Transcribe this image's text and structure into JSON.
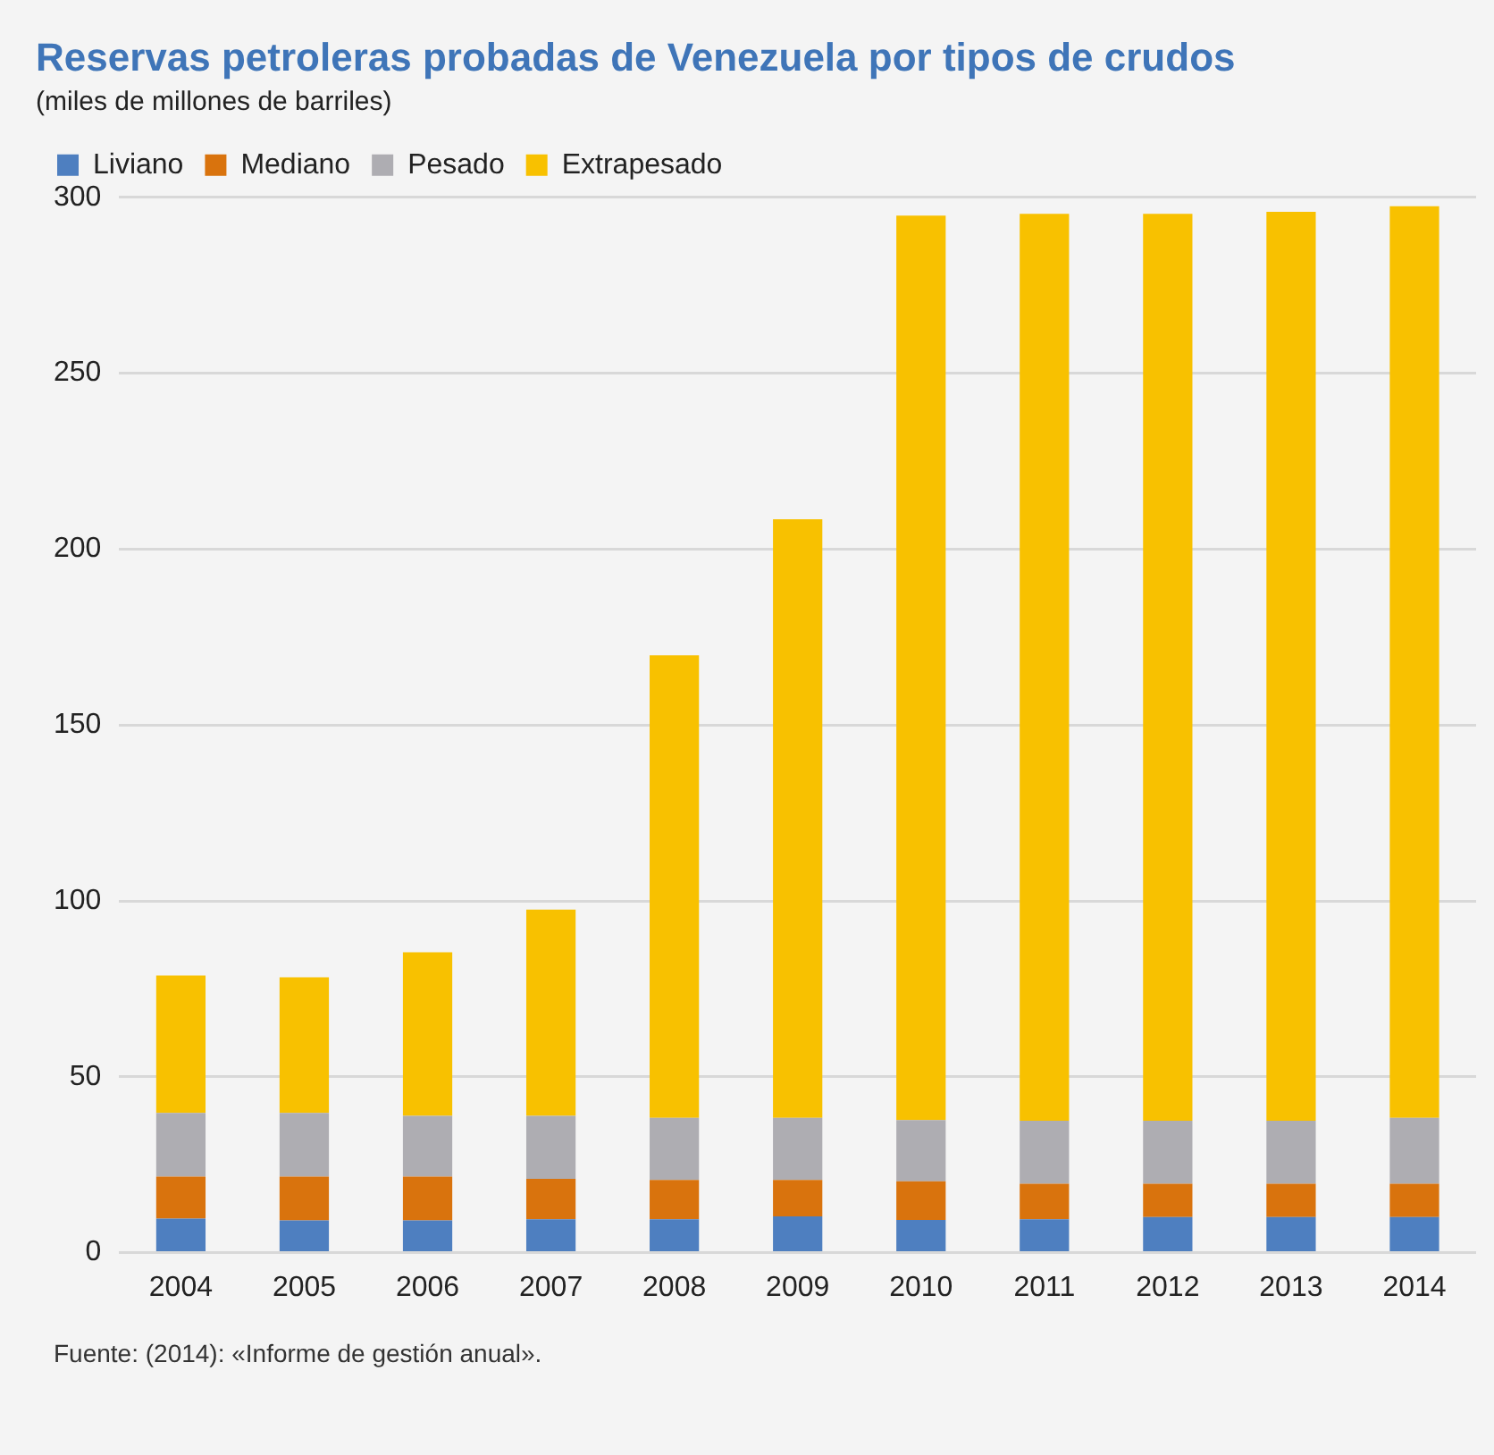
{
  "chart_data": {
    "type": "bar",
    "title": "Reservas petroleras probadas de Venezuela por tipos de crudos",
    "subtitle": "(miles de millones de barriles)",
    "categories": [
      "2004",
      "2005",
      "2006",
      "2007",
      "2008",
      "2009",
      "2010",
      "2011",
      "2012",
      "2013",
      "2014"
    ],
    "series": [
      {
        "name": "Liviano",
        "color": "#4e7fc0",
        "values": [
          9.7,
          9.2,
          9.2,
          9.5,
          9.5,
          10.3,
          9.3,
          9.5,
          10.1,
          10.1,
          10.1
        ]
      },
      {
        "name": "Mediano",
        "color": "#d9730d",
        "values": [
          11.9,
          12.4,
          12.4,
          11.5,
          11.2,
          10.4,
          11.0,
          10.1,
          9.5,
          9.5,
          9.5
        ]
      },
      {
        "name": "Pesado",
        "color": "#aeadb2",
        "values": [
          18.1,
          18.1,
          17.3,
          17.9,
          17.6,
          17.6,
          17.4,
          17.9,
          17.9,
          17.9,
          18.7
        ]
      },
      {
        "name": "Extrapesado",
        "color": "#f8c100",
        "values": [
          39.1,
          38.6,
          46.5,
          58.6,
          131.5,
          170.2,
          257.1,
          257.8,
          257.8,
          258.4,
          259.2
        ]
      }
    ],
    "stacked": true,
    "ylim": [
      0,
      300
    ],
    "yticks": [
      0,
      50,
      100,
      150,
      200,
      250,
      300
    ],
    "grid": "y",
    "legend": "top left",
    "annotations": [
      "Fuente: (2014): «Informe de gestión anual»."
    ]
  }
}
